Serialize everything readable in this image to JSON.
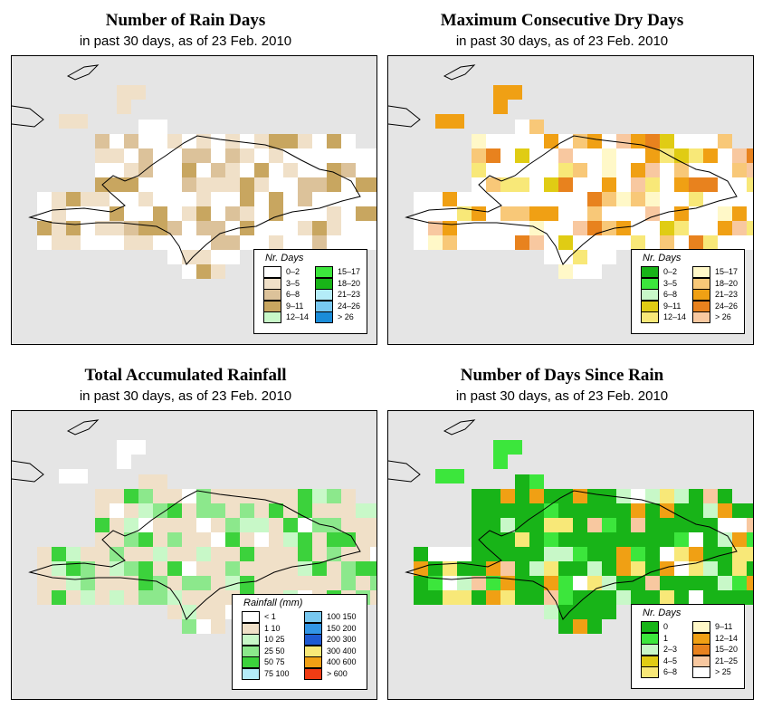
{
  "panels": [
    {
      "id": "raindays",
      "title": "Number of Rain Days",
      "subtitle": "in past 30 days, as of  23 Feb. 2010",
      "legend_title": "Nr. Days",
      "legend": [
        {
          "label": "0–2",
          "color": "#ffffff"
        },
        {
          "label": "3–5",
          "color": "#f0e0c8"
        },
        {
          "label": "6–8",
          "color": "#dcc29a"
        },
        {
          "label": "9–11",
          "color": "#c8a660"
        },
        {
          "label": "12–14",
          "color": "#c8f8c8"
        },
        {
          "label": "15–17",
          "color": "#3ce63c"
        },
        {
          "label": "18–20",
          "color": "#18b418"
        },
        {
          "label": "21–23",
          "color": "#b4ecf8"
        },
        {
          "label": "24–26",
          "color": "#78c8f0"
        },
        {
          "label": "> 26",
          "color": "#1a8cd8"
        }
      ],
      "dominant_color": "#ffffff",
      "accent_colors": [
        "#f0e0c8",
        "#dcc29a",
        "#c8a660"
      ]
    },
    {
      "id": "drydays",
      "title": "Maximum Consecutive Dry Days",
      "subtitle": "in past 30 days, as of  23 Feb. 2010",
      "legend_title": "Nr. Days",
      "legend": [
        {
          "label": "0–2",
          "color": "#18b418"
        },
        {
          "label": "3–5",
          "color": "#3ce63c"
        },
        {
          "label": "6–8",
          "color": "#c8f8c8"
        },
        {
          "label": "9–11",
          "color": "#e0cc14"
        },
        {
          "label": "12–14",
          "color": "#f8e878"
        },
        {
          "label": "15–17",
          "color": "#fff8c8"
        },
        {
          "label": "18–20",
          "color": "#f8c878"
        },
        {
          "label": "21–23",
          "color": "#f0a014"
        },
        {
          "label": "24–26",
          "color": "#e8821e"
        },
        {
          "label": "> 26",
          "color": "#f8c8a0"
        }
      ],
      "dominant_color": "#ffffff",
      "accent_colors": [
        "#f0a014",
        "#e8821e",
        "#f8c878",
        "#fff8c8",
        "#f8e878",
        "#e0cc14",
        "#f8c8a0"
      ]
    },
    {
      "id": "rainfall",
      "title": "Total Accumulated Rainfall",
      "subtitle": "in past 30 days, as of  23 Feb. 2010",
      "legend_title": "Rainfall (mm)",
      "legend": [
        {
          "label": "< 1",
          "color": "#ffffff"
        },
        {
          "label": "1    10",
          "color": "#f0e0c8"
        },
        {
          "label": "10    25",
          "color": "#c8f8c8"
        },
        {
          "label": "25    50",
          "color": "#8ce88c"
        },
        {
          "label": "50    75",
          "color": "#3cd23c"
        },
        {
          "label": "75   100",
          "color": "#b4ecf8"
        },
        {
          "label": "100   150",
          "color": "#78c8f0"
        },
        {
          "label": "150   200",
          "color": "#3296e6"
        },
        {
          "label": "200   300",
          "color": "#1e5ad2"
        },
        {
          "label": "300   400",
          "color": "#f8e878"
        },
        {
          "label": "400   600",
          "color": "#f0a014"
        },
        {
          "label": "> 600",
          "color": "#f03c14"
        }
      ],
      "dominant_color": "#f0e0c8",
      "accent_colors": [
        "#ffffff",
        "#c8f8c8",
        "#8ce88c",
        "#3cd23c"
      ]
    },
    {
      "id": "sincerain",
      "title": "Number of Days Since Rain",
      "subtitle": "in past 30 days, as of  23 Feb. 2010",
      "legend_title": "Nr. Days",
      "legend": [
        {
          "label": "0",
          "color": "#18b418"
        },
        {
          "label": "1",
          "color": "#3ce63c"
        },
        {
          "label": "2–3",
          "color": "#c8f8c8"
        },
        {
          "label": "4–5",
          "color": "#e0cc14"
        },
        {
          "label": "6–8",
          "color": "#f8e878"
        },
        {
          "label": "9–11",
          "color": "#fff8c8"
        },
        {
          "label": "12–14",
          "color": "#f0a014"
        },
        {
          "label": "15–20",
          "color": "#e8821e"
        },
        {
          "label": "21–25",
          "color": "#f8c8a0"
        },
        {
          "label": "> 25",
          "color": "#ffffff"
        }
      ],
      "dominant_color": "#18b418",
      "accent_colors": [
        "#3ce63c",
        "#c8f8c8",
        "#ffffff",
        "#f8e878",
        "#f0a014",
        "#f8c8a0"
      ]
    }
  ]
}
